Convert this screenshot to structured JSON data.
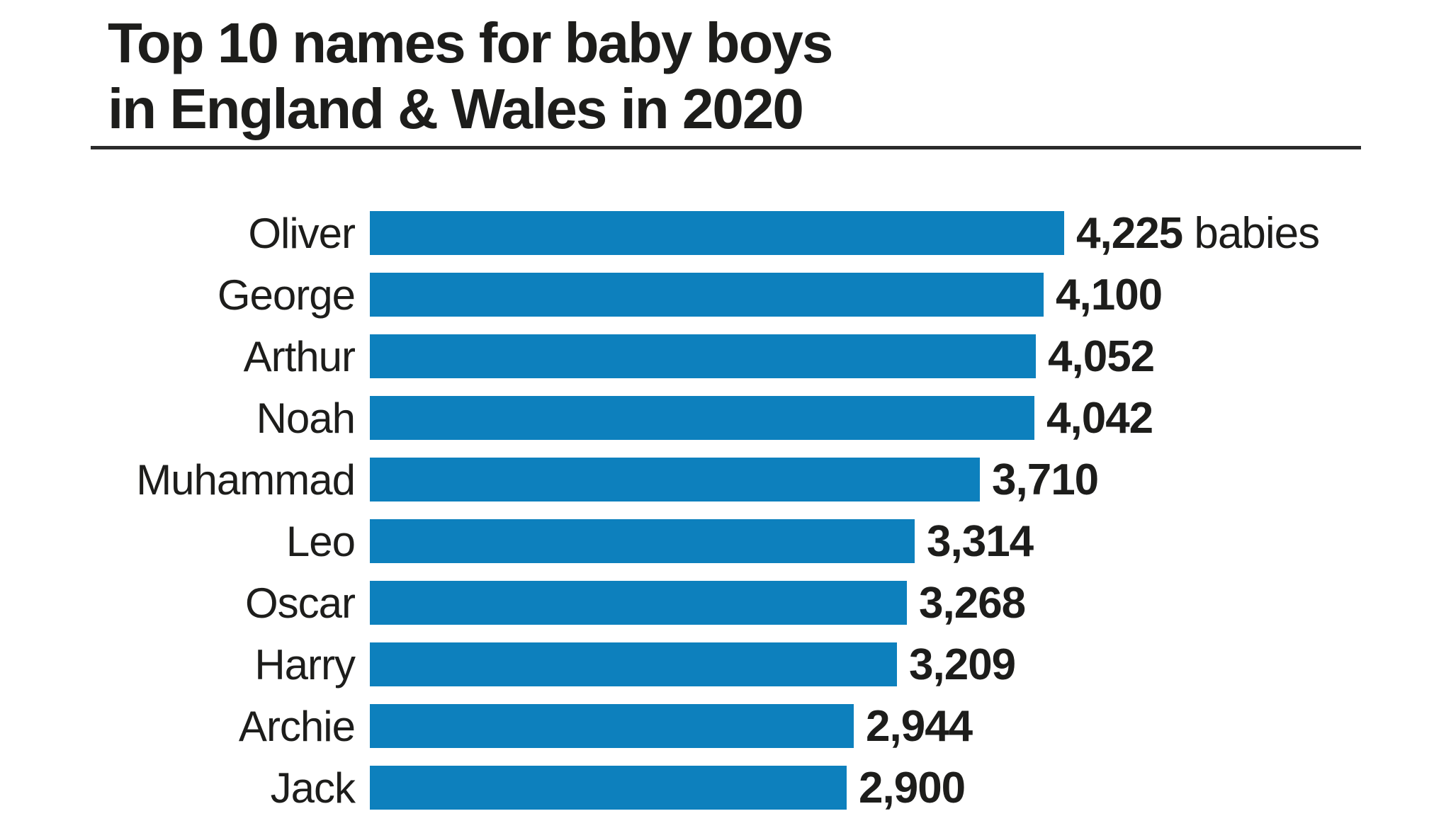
{
  "title": {
    "line1": "Top 10 names for baby boys",
    "line2": "in England & Wales in 2020"
  },
  "chart_data": {
    "type": "bar",
    "orientation": "horizontal",
    "title": "Top 10 names for baby boys in England & Wales in 2020",
    "categories": [
      "Oliver",
      "George",
      "Arthur",
      "Noah",
      "Muhammad",
      "Leo",
      "Oscar",
      "Harry",
      "Archie",
      "Jack"
    ],
    "values": [
      4225,
      4100,
      4052,
      4042,
      3710,
      3314,
      3268,
      3209,
      2944,
      2900
    ],
    "value_labels": [
      "4,225",
      "4,100",
      "4,052",
      "4,042",
      "3,710",
      "3,314",
      "3,268",
      "3,209",
      "2,944",
      "2,900"
    ],
    "unit_suffix": " babies",
    "xlabel": "",
    "ylabel": "",
    "xlim": [
      0,
      4500
    ],
    "grid": false,
    "legend": "none",
    "bar_color": "#0d80bd",
    "text_color": "#1d1d1b"
  }
}
